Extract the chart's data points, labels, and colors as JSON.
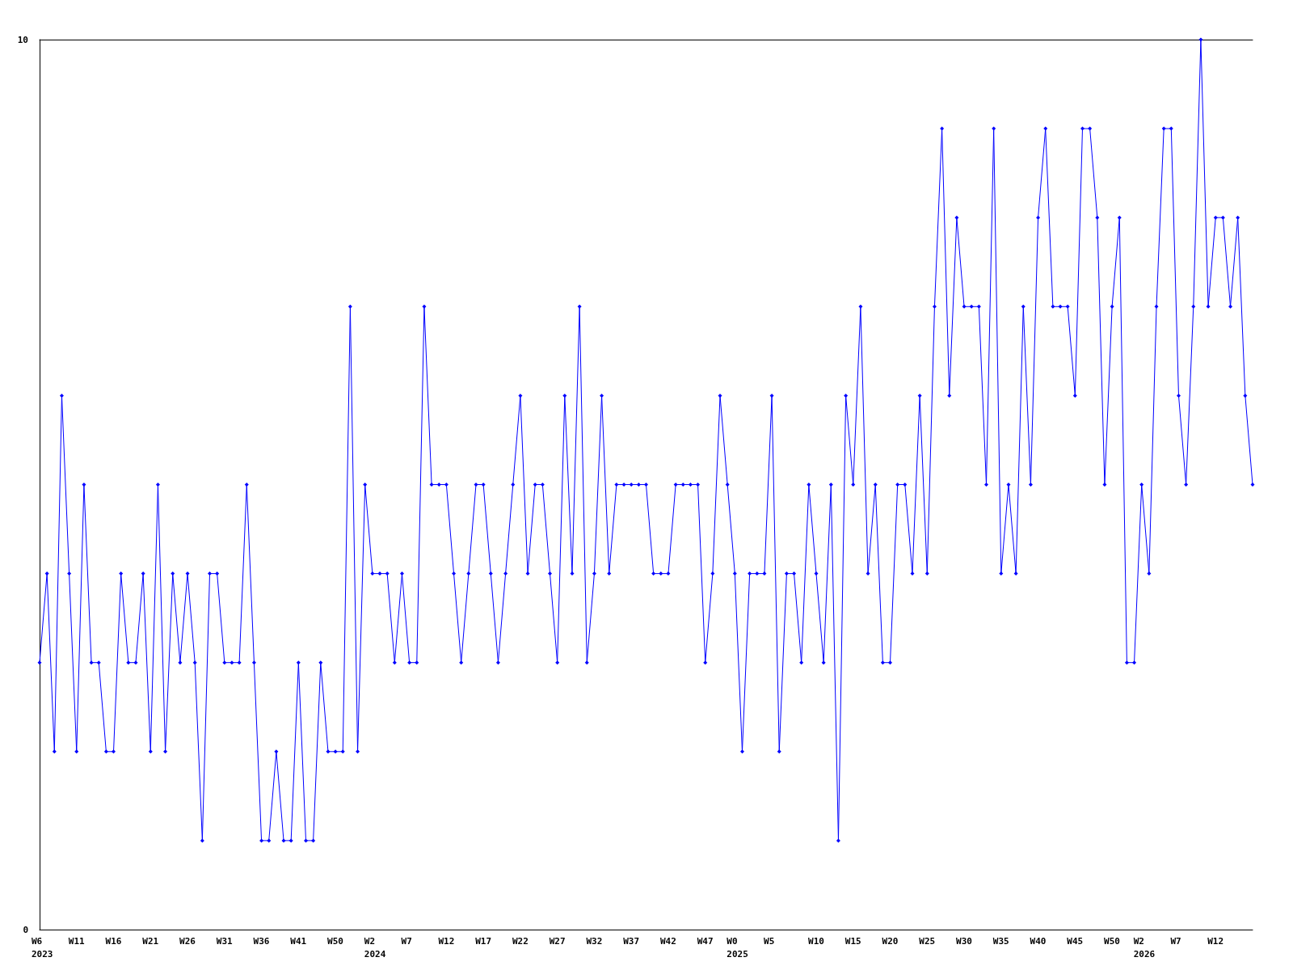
{
  "chart_data": {
    "type": "line",
    "categories": [
      "W6\n2023",
      null,
      null,
      null,
      null,
      "W11",
      null,
      null,
      null,
      null,
      "W16",
      null,
      null,
      null,
      null,
      "W21",
      null,
      null,
      null,
      null,
      "W26",
      null,
      null,
      null,
      null,
      "W31",
      null,
      null,
      null,
      null,
      "W36",
      null,
      null,
      null,
      null,
      "W41",
      null,
      null,
      null,
      null,
      "W50",
      null,
      null,
      null,
      null,
      "W2\n2024",
      null,
      null,
      null,
      null,
      "W7",
      null,
      null,
      null,
      null,
      "W12",
      null,
      null,
      null,
      null,
      "W17",
      null,
      null,
      null,
      null,
      "W22",
      null,
      null,
      null,
      null,
      "W27",
      null,
      null,
      null,
      null,
      "W32",
      null,
      null,
      null,
      null,
      "W37",
      null,
      null,
      null,
      null,
      "W42",
      null,
      null,
      null,
      null,
      "W47",
      null,
      null,
      null,
      "W0\n2025",
      null,
      null,
      null,
      null,
      "W5",
      null,
      null,
      null,
      null,
      null,
      "W10",
      null,
      null,
      null,
      null,
      "W15",
      null,
      null,
      null,
      null,
      "W20",
      null,
      null,
      null,
      null,
      "W25",
      null,
      null,
      null,
      null,
      "W30",
      null,
      null,
      null,
      null,
      "W35",
      null,
      null,
      null,
      null,
      "W40",
      null,
      null,
      null,
      null,
      "W45",
      null,
      null,
      null,
      null,
      "W50",
      null,
      null,
      null,
      "W2\n2026",
      null,
      null,
      null,
      null,
      "W7",
      null,
      null,
      null,
      null,
      "W12",
      null,
      null,
      null,
      null,
      null
    ],
    "values": [
      3,
      4,
      2,
      6,
      4,
      2,
      5,
      3,
      3,
      2,
      2,
      4,
      3,
      3,
      4,
      2,
      5,
      2,
      4,
      3,
      4,
      3,
      1,
      4,
      4,
      3,
      3,
      3,
      5,
      3,
      1,
      1,
      2,
      1,
      1,
      3,
      1,
      1,
      3,
      2,
      2,
      2,
      7,
      2,
      5,
      4,
      4,
      4,
      3,
      4,
      3,
      3,
      7,
      5,
      5,
      5,
      4,
      3,
      4,
      5,
      5,
      4,
      3,
      4,
      5,
      6,
      4,
      5,
      5,
      4,
      3,
      6,
      4,
      7,
      3,
      4,
      6,
      4,
      5,
      5,
      5,
      5,
      5,
      4,
      4,
      4,
      5,
      5,
      5,
      5,
      3,
      4,
      6,
      5,
      4,
      2,
      4,
      4,
      4,
      6,
      2,
      4,
      4,
      3,
      5,
      4,
      3,
      5,
      1,
      6,
      5,
      7,
      4,
      5,
      3,
      3,
      5,
      5,
      4,
      6,
      4,
      7,
      9,
      6,
      8,
      7,
      7,
      7,
      5,
      9,
      4,
      5,
      4,
      7,
      5,
      8,
      9,
      7,
      7,
      7,
      6,
      9,
      9,
      8,
      5,
      7,
      8,
      3,
      3,
      5,
      4,
      7,
      9,
      9,
      6,
      5,
      7,
      10,
      7,
      8,
      8,
      7,
      8,
      6,
      5
    ],
    "color": "#0000ff",
    "ylim": [
      0,
      10
    ],
    "yticks": [
      0,
      10
    ],
    "marker": "diamond"
  }
}
